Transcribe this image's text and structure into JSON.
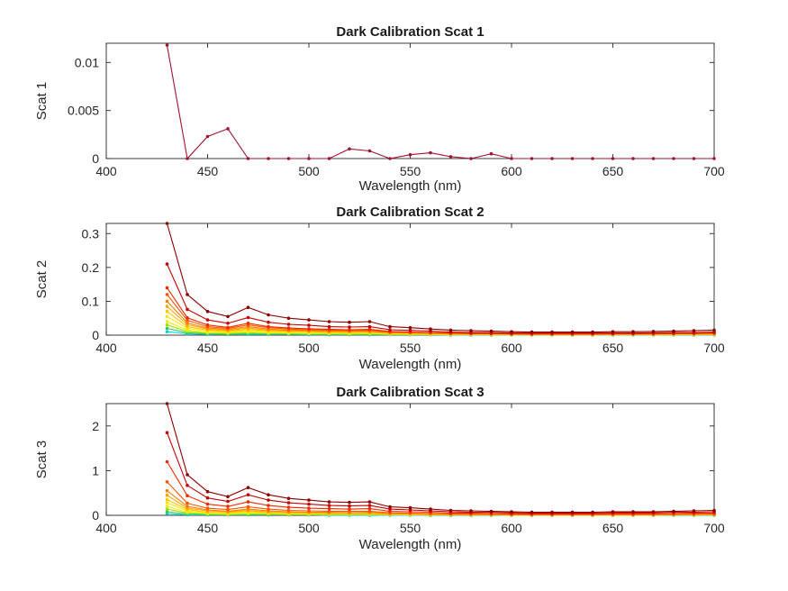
{
  "figure": {
    "background": "#ffffff",
    "axis_color": "#262626",
    "text_color": "#262626"
  },
  "chart_data": [
    {
      "type": "line",
      "title": "Dark Calibration Scat 1",
      "xlabel": "Wavelength (nm)",
      "ylabel": "Scat 1",
      "xlim": [
        400,
        700
      ],
      "ylim": [
        0,
        0.012
      ],
      "xticks": [
        400,
        450,
        500,
        550,
        600,
        650,
        700
      ],
      "xticklabels": [
        "400",
        "450",
        "500",
        "550",
        "600",
        "650",
        "700"
      ],
      "yticks": [
        0,
        0.005,
        0.01
      ],
      "yticklabels": [
        "0",
        "0.005",
        "0.01"
      ],
      "grid": false,
      "legend": "none",
      "marker": "dot",
      "x": [
        430,
        440,
        450,
        460,
        470,
        480,
        490,
        500,
        510,
        520,
        530,
        540,
        550,
        560,
        570,
        580,
        590,
        600,
        610,
        620,
        630,
        640,
        650,
        660,
        670,
        680,
        690,
        700
      ],
      "series": [
        {
          "name": "series-1",
          "color": "#a2142f",
          "values": [
            0.0118,
            0,
            0.0023,
            0.0031,
            0,
            0,
            0,
            0,
            0,
            0.001,
            0.0008,
            0,
            0.0004,
            0.0006,
            0.0002,
            0,
            0.0005,
            0,
            0,
            0,
            0,
            0,
            0,
            0,
            0,
            0,
            0,
            0
          ]
        }
      ]
    },
    {
      "type": "line",
      "title": "Dark Calibration Scat 2",
      "xlabel": "Wavelength (nm)",
      "ylabel": "Scat 2",
      "xlim": [
        400,
        700
      ],
      "ylim": [
        0,
        0.33
      ],
      "xticks": [
        400,
        450,
        500,
        550,
        600,
        650,
        700
      ],
      "xticklabels": [
        "400",
        "450",
        "500",
        "550",
        "600",
        "650",
        "700"
      ],
      "yticks": [
        0,
        0.1,
        0.2,
        0.3
      ],
      "yticklabels": [
        "0",
        "0.1",
        "0.2",
        "0.3"
      ],
      "grid": false,
      "legend": "none",
      "marker": "dot",
      "x": [
        430,
        440,
        450,
        460,
        470,
        480,
        490,
        500,
        510,
        520,
        530,
        540,
        550,
        560,
        570,
        580,
        590,
        600,
        610,
        620,
        630,
        640,
        650,
        660,
        670,
        680,
        690,
        700
      ],
      "series": [
        {
          "name": "series-1",
          "color": "#8b0000",
          "values": [
            0.33,
            0.12,
            0.07,
            0.055,
            0.082,
            0.06,
            0.05,
            0.045,
            0.04,
            0.038,
            0.04,
            0.025,
            0.022,
            0.018,
            0.015,
            0.013,
            0.012,
            0.01,
            0.009,
            0.009,
            0.009,
            0.009,
            0.01,
            0.01,
            0.011,
            0.012,
            0.013,
            0.015
          ]
        },
        {
          "name": "series-2",
          "color": "#c40000",
          "values": [
            0.21,
            0.076,
            0.045,
            0.035,
            0.052,
            0.038,
            0.032,
            0.029,
            0.025,
            0.024,
            0.025,
            0.016,
            0.014,
            0.012,
            0.009,
            0.008,
            0.008,
            0.006,
            0.006,
            0.006,
            0.006,
            0.006,
            0.006,
            0.006,
            0.007,
            0.008,
            0.008,
            0.009
          ]
        },
        {
          "name": "series-3",
          "color": "#ef2a00",
          "values": [
            0.14,
            0.051,
            0.03,
            0.023,
            0.035,
            0.025,
            0.021,
            0.019,
            0.017,
            0.016,
            0.017,
            0.011,
            0.009,
            0.008,
            0.006,
            0.005,
            0.005,
            0.004,
            0.004,
            0.004,
            0.004,
            0.004,
            0.004,
            0.004,
            0.005,
            0.005,
            0.005,
            0.006
          ]
        },
        {
          "name": "series-4",
          "color": "#ff5500",
          "values": [
            0.12,
            0.044,
            0.025,
            0.02,
            0.03,
            0.022,
            0.018,
            0.016,
            0.015,
            0.014,
            0.015,
            0.009,
            0.008,
            0.007,
            0.005,
            0.005,
            0.004,
            0.004,
            0.003,
            0.003,
            0.003,
            0.003,
            0.004,
            0.004,
            0.004,
            0.004,
            0.005,
            0.005
          ]
        },
        {
          "name": "series-5",
          "color": "#ff7f00",
          "values": [
            0.1,
            0.036,
            0.021,
            0.017,
            0.025,
            0.018,
            0.015,
            0.014,
            0.012,
            0.012,
            0.012,
            0.008,
            0.007,
            0.006,
            0.005,
            0.004,
            0.004,
            0.003,
            0.003,
            0.003,
            0.003,
            0.003,
            0.003,
            0.003,
            0.003,
            0.004,
            0.004,
            0.005
          ]
        },
        {
          "name": "series-6",
          "color": "#ffa500",
          "values": [
            0.085,
            0.031,
            0.018,
            0.014,
            0.021,
            0.015,
            0.013,
            0.012,
            0.01,
            0.01,
            0.01,
            0.006,
            0.006,
            0.005,
            0.004,
            0.003,
            0.003,
            0.003,
            0.002,
            0.002,
            0.002,
            0.002,
            0.003,
            0.003,
            0.003,
            0.003,
            0.003,
            0.004
          ]
        },
        {
          "name": "series-7",
          "color": "#ffc400",
          "values": [
            0.07,
            0.025,
            0.015,
            0.012,
            0.017,
            0.013,
            0.011,
            0.01,
            0.008,
            0.008,
            0.008,
            0.005,
            0.005,
            0.004,
            0.003,
            0.003,
            0.003,
            0.002,
            0.002,
            0.002,
            0.002,
            0.002,
            0.002,
            0.002,
            0.002,
            0.003,
            0.003,
            0.003
          ]
        },
        {
          "name": "series-8",
          "color": "#ffe600",
          "values": [
            0.055,
            0.02,
            0.012,
            0.009,
            0.014,
            0.01,
            0.008,
            0.007,
            0.007,
            0.006,
            0.007,
            0.004,
            0.004,
            0.003,
            0.002,
            0.002,
            0.002,
            0.002,
            0.001,
            0.001,
            0.001,
            0.001,
            0.002,
            0.002,
            0.002,
            0.002,
            0.002,
            0.002
          ]
        },
        {
          "name": "series-9",
          "color": "#e8f000",
          "values": [
            0.04,
            0.015,
            0.008,
            0.007,
            0.01,
            0.007,
            0.006,
            0.005,
            0.005,
            0.005,
            0.005,
            0.003,
            0.003,
            0.002,
            0.002,
            0.002,
            0.001,
            0.001,
            0.001,
            0.001,
            0.001,
            0.001,
            0.001,
            0.001,
            0.001,
            0.001,
            0.002,
            0.002
          ]
        },
        {
          "name": "series-10",
          "color": "#a0e000",
          "values": [
            0.03,
            0.011,
            0.006,
            0.005,
            0.007,
            0.005,
            0.005,
            0.004,
            0.004,
            0.003,
            0.004,
            0.002,
            0.002,
            0.002,
            0.001,
            0.001,
            0.001,
            0.001,
            0.001,
            0.001,
            0.001,
            0.001,
            0.001,
            0.001,
            0.001,
            0.001,
            0.001,
            0.001
          ]
        },
        {
          "name": "series-11",
          "color": "#30c860",
          "values": [
            0.02,
            0.007,
            0.004,
            0.003,
            0.005,
            0.004,
            0.003,
            0.003,
            0.002,
            0.002,
            0.002,
            0.002,
            0.001,
            0.001,
            0.001,
            0.001,
            0.001,
            0.001,
            0.001,
            0.001,
            0.001,
            0.001,
            0.001,
            0.001,
            0.001,
            0.001,
            0.001,
            0.001
          ]
        },
        {
          "name": "series-12",
          "color": "#00d5d5",
          "values": [
            0.01,
            0.004,
            0.002,
            0.002,
            0.002,
            0.002,
            0.002,
            0.001,
            0.001,
            0.001,
            0.001,
            0.001,
            0.001,
            0.001,
            0,
            0,
            0,
            0,
            0,
            0,
            0,
            0,
            0,
            0,
            0,
            0,
            0,
            0
          ]
        }
      ]
    },
    {
      "type": "line",
      "title": "Dark Calibration Scat 3",
      "xlabel": "Wavelength (nm)",
      "ylabel": "Scat 3",
      "xlim": [
        400,
        700
      ],
      "ylim": [
        0,
        2.5
      ],
      "xticks": [
        400,
        450,
        500,
        550,
        600,
        650,
        700
      ],
      "xticklabels": [
        "400",
        "450",
        "500",
        "550",
        "600",
        "650",
        "700"
      ],
      "yticks": [
        0,
        1,
        2
      ],
      "yticklabels": [
        "0",
        "1",
        "2"
      ],
      "grid": false,
      "legend": "none",
      "marker": "dot",
      "x": [
        430,
        440,
        450,
        460,
        470,
        480,
        490,
        500,
        510,
        520,
        530,
        540,
        550,
        560,
        570,
        580,
        590,
        600,
        610,
        620,
        630,
        640,
        650,
        660,
        670,
        680,
        690,
        700
      ],
      "series": [
        {
          "name": "series-1",
          "color": "#8b0000",
          "values": [
            2.5,
            0.91,
            0.53,
            0.42,
            0.62,
            0.46,
            0.38,
            0.34,
            0.3,
            0.29,
            0.3,
            0.19,
            0.17,
            0.14,
            0.11,
            0.1,
            0.09,
            0.08,
            0.07,
            0.07,
            0.07,
            0.07,
            0.08,
            0.08,
            0.08,
            0.09,
            0.1,
            0.11
          ]
        },
        {
          "name": "series-2",
          "color": "#c40000",
          "values": [
            1.85,
            0.67,
            0.39,
            0.31,
            0.46,
            0.34,
            0.28,
            0.25,
            0.22,
            0.21,
            0.22,
            0.14,
            0.12,
            0.1,
            0.08,
            0.07,
            0.07,
            0.06,
            0.05,
            0.05,
            0.05,
            0.05,
            0.06,
            0.06,
            0.06,
            0.07,
            0.07,
            0.08
          ]
        },
        {
          "name": "series-3",
          "color": "#ef2a00",
          "values": [
            1.2,
            0.44,
            0.25,
            0.2,
            0.3,
            0.22,
            0.18,
            0.16,
            0.15,
            0.14,
            0.15,
            0.09,
            0.08,
            0.07,
            0.05,
            0.05,
            0.04,
            0.04,
            0.03,
            0.03,
            0.03,
            0.03,
            0.04,
            0.04,
            0.04,
            0.04,
            0.05,
            0.05
          ]
        },
        {
          "name": "series-4",
          "color": "#ff5500",
          "values": [
            0.75,
            0.27,
            0.16,
            0.13,
            0.19,
            0.14,
            0.11,
            0.1,
            0.09,
            0.09,
            0.09,
            0.06,
            0.05,
            0.04,
            0.03,
            0.03,
            0.03,
            0.02,
            0.02,
            0.02,
            0.02,
            0.02,
            0.02,
            0.02,
            0.02,
            0.03,
            0.03,
            0.03
          ]
        },
        {
          "name": "series-5",
          "color": "#ff7f00",
          "values": [
            0.55,
            0.2,
            0.12,
            0.09,
            0.14,
            0.1,
            0.08,
            0.07,
            0.07,
            0.06,
            0.07,
            0.04,
            0.04,
            0.03,
            0.02,
            0.02,
            0.02,
            0.02,
            0.01,
            0.01,
            0.01,
            0.01,
            0.02,
            0.02,
            0.02,
            0.02,
            0.02,
            0.02
          ]
        },
        {
          "name": "series-6",
          "color": "#ffa500",
          "values": [
            0.45,
            0.16,
            0.1,
            0.08,
            0.11,
            0.08,
            0.07,
            0.06,
            0.05,
            0.05,
            0.05,
            0.03,
            0.03,
            0.02,
            0.02,
            0.02,
            0.02,
            0.01,
            0.01,
            0.01,
            0.01,
            0.01,
            0.01,
            0.01,
            0.01,
            0.02,
            0.02,
            0.02
          ]
        },
        {
          "name": "series-7",
          "color": "#ffc400",
          "values": [
            0.35,
            0.13,
            0.07,
            0.06,
            0.09,
            0.06,
            0.05,
            0.05,
            0.04,
            0.04,
            0.04,
            0.03,
            0.02,
            0.02,
            0.02,
            0.01,
            0.01,
            0.01,
            0.01,
            0.01,
            0.01,
            0.01,
            0.01,
            0.01,
            0.01,
            0.01,
            0.01,
            0.02
          ]
        },
        {
          "name": "series-8",
          "color": "#ffe600",
          "values": [
            0.28,
            0.1,
            0.06,
            0.05,
            0.07,
            0.05,
            0.04,
            0.04,
            0.03,
            0.03,
            0.03,
            0.02,
            0.02,
            0.02,
            0.01,
            0.01,
            0.01,
            0.01,
            0.01,
            0.01,
            0.01,
            0.01,
            0.01,
            0.01,
            0.01,
            0.01,
            0.01,
            0.01
          ]
        },
        {
          "name": "series-9",
          "color": "#e8f000",
          "values": [
            0.2,
            0.07,
            0.04,
            0.03,
            0.05,
            0.04,
            0.03,
            0.03,
            0.02,
            0.02,
            0.02,
            0.02,
            0.01,
            0.01,
            0.01,
            0.01,
            0.01,
            0.01,
            0.01,
            0.01,
            0.01,
            0.01,
            0.01,
            0.01,
            0.01,
            0.01,
            0.01,
            0.01
          ]
        },
        {
          "name": "series-10",
          "color": "#a0e000",
          "values": [
            0.14,
            0.05,
            0.03,
            0.02,
            0.03,
            0.03,
            0.02,
            0.02,
            0.02,
            0.02,
            0.02,
            0.01,
            0.01,
            0.01,
            0.01,
            0.01,
            0.01,
            0,
            0,
            0,
            0,
            0,
            0,
            0,
            0,
            0.01,
            0.01,
            0.01
          ]
        },
        {
          "name": "series-11",
          "color": "#30c860",
          "values": [
            0.08,
            0.03,
            0.02,
            0.01,
            0.02,
            0.01,
            0.01,
            0.01,
            0.01,
            0.01,
            0.01,
            0.01,
            0.01,
            0,
            0,
            0,
            0,
            0,
            0,
            0,
            0,
            0,
            0,
            0,
            0,
            0,
            0,
            0
          ]
        },
        {
          "name": "series-12",
          "color": "#00d5d5",
          "values": [
            0.04,
            0.01,
            0.01,
            0.01,
            0.01,
            0.01,
            0.01,
            0.01,
            0,
            0,
            0,
            0,
            0,
            0,
            0,
            0,
            0,
            0,
            0,
            0,
            0,
            0,
            0,
            0,
            0,
            0,
            0,
            0
          ]
        }
      ]
    }
  ]
}
